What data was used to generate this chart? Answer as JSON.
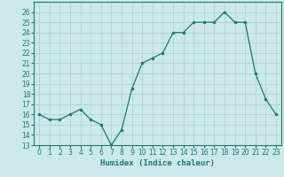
{
  "x": [
    0,
    1,
    2,
    3,
    4,
    5,
    6,
    7,
    8,
    9,
    10,
    11,
    12,
    13,
    14,
    15,
    16,
    17,
    18,
    19,
    20,
    21,
    22,
    23
  ],
  "y": [
    16,
    15.5,
    15.5,
    16,
    16.5,
    15.5,
    15,
    13,
    14.5,
    18.5,
    21,
    21.5,
    22,
    24,
    24,
    25,
    25,
    25,
    26,
    25,
    25,
    20,
    17.5,
    16
  ],
  "line_color": "#1a7a6e",
  "marker": "o",
  "marker_size": 2.0,
  "bg_color": "#cce8e8",
  "grid_color": "#aacfcf",
  "xlabel": "Humidex (Indice chaleur)",
  "ylabel": "",
  "xlim": [
    -0.5,
    23.5
  ],
  "ylim": [
    13,
    27
  ],
  "yticks": [
    13,
    14,
    15,
    16,
    17,
    18,
    19,
    20,
    21,
    22,
    23,
    24,
    25,
    26
  ],
  "xticks": [
    0,
    1,
    2,
    3,
    4,
    5,
    6,
    7,
    8,
    9,
    10,
    11,
    12,
    13,
    14,
    15,
    16,
    17,
    18,
    19,
    20,
    21,
    22,
    23
  ],
  "tick_fontsize": 5.5,
  "xlabel_fontsize": 6.5
}
